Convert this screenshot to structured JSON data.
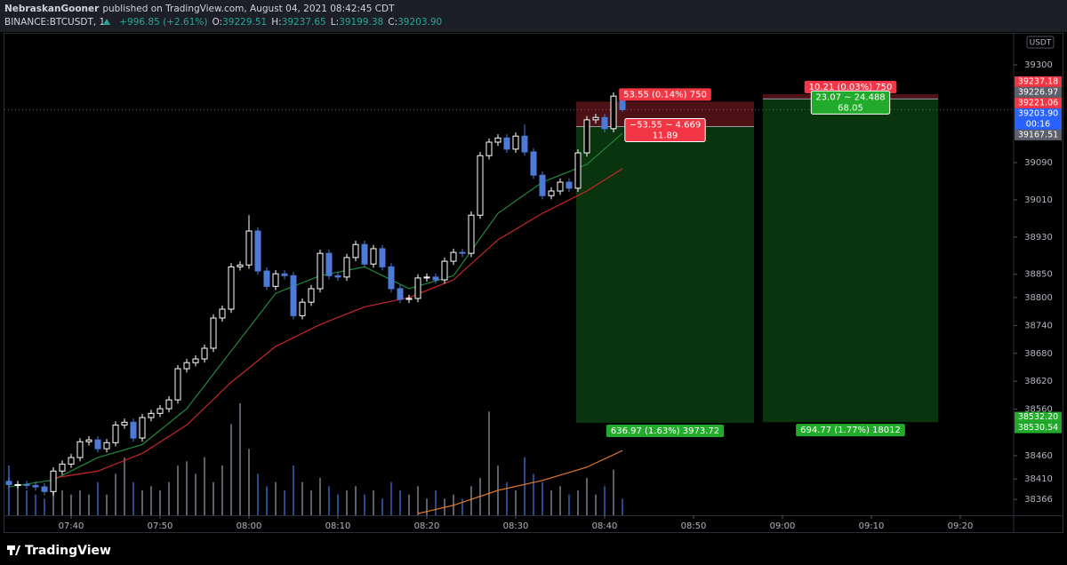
{
  "header": {
    "author": "NebraskanGooner",
    "published": "published on TradingView.com, August 04, 2021 08:42:45 CDT",
    "symbol": "BINANCE:BTCUSDT, 1",
    "change": "+996.85 (+2.61%)",
    "o_label": "O:",
    "o": "39229.51",
    "h_label": "H:",
    "h": "39237.65",
    "l_label": "L:",
    "l": "39199.38",
    "c_label": "C:",
    "c": "39203.90"
  },
  "footer": {
    "brand": "TradingView"
  },
  "chart_data": {
    "type": "candlestick",
    "currency": "USDT",
    "countdown": "00:16",
    "last_price_color": "#2962ff",
    "open": [
      38405,
      38398,
      38398,
      38396,
      38393,
      38383,
      38427,
      38442,
      38456,
      38490,
      38494,
      38475,
      38488,
      38526,
      38532,
      38498,
      38542,
      38551,
      38561,
      38580,
      38647,
      38660,
      38668,
      38691,
      38756,
      38775,
      38866,
      38870,
      38943,
      38857,
      38824,
      38851,
      38847,
      38761,
      38790,
      38819,
      38895,
      38847,
      38844,
      38886,
      38914,
      38872,
      38905,
      38866,
      38819,
      38796,
      38798,
      38842,
      38844,
      38838,
      38878,
      38897,
      38895,
      38977,
      39105,
      39134,
      39143,
      39119,
      39147,
      39113,
      39063,
      39019,
      39029,
      39048,
      39035,
      39111,
      39182,
      39187,
      39163,
      39229.51
    ],
    "high": [
      38413,
      38406,
      38406,
      38404,
      38401,
      38435,
      38450,
      38464,
      38498,
      38502,
      38502,
      38496,
      38534,
      38540,
      38540,
      38550,
      38559,
      38569,
      38588,
      38655,
      38668,
      38676,
      38699,
      38764,
      38783,
      38874,
      38878,
      38977,
      38951,
      38865,
      38859,
      38859,
      38855,
      38798,
      38827,
      38903,
      38903,
      38855,
      38894,
      38922,
      38922,
      38913,
      38913,
      38874,
      38827,
      38806,
      38850,
      38852,
      38852,
      38886,
      38905,
      38905,
      38985,
      39113,
      39142,
      39151,
      39151,
      39155,
      39172,
      39121,
      39071,
      39037,
      39056,
      39056,
      39119,
      39190,
      39195,
      39195,
      39241,
      39237.65
    ],
    "low": [
      38390,
      38390,
      38388,
      38385,
      38375,
      38375,
      38419,
      38434,
      38448,
      38482,
      38467,
      38467,
      38480,
      38518,
      38490,
      38490,
      38534,
      38543,
      38553,
      38572,
      38639,
      38652,
      38660,
      38683,
      38748,
      38767,
      38858,
      38862,
      38849,
      38816,
      38816,
      38839,
      38753,
      38753,
      38782,
      38811,
      38839,
      38836,
      38836,
      38878,
      38864,
      38864,
      38858,
      38811,
      38788,
      38788,
      38790,
      38834,
      38830,
      38830,
      38870,
      38887,
      38887,
      38969,
      39097,
      39126,
      39111,
      39111,
      39105,
      39055,
      39011,
      39011,
      39021,
      39027,
      39027,
      39103,
      39174,
      39155,
      39155,
      39199.38
    ],
    "close": [
      38398,
      38398,
      38396,
      38393,
      38383,
      38427,
      38442,
      38456,
      38490,
      38494,
      38475,
      38488,
      38526,
      38532,
      38498,
      38542,
      38551,
      38561,
      38580,
      38647,
      38660,
      38668,
      38691,
      38756,
      38775,
      38866,
      38870,
      38943,
      38857,
      38824,
      38851,
      38847,
      38761,
      38790,
      38819,
      38895,
      38847,
      38844,
      38886,
      38914,
      38872,
      38905,
      38866,
      38819,
      38796,
      38798,
      38842,
      38844,
      38838,
      38878,
      38897,
      38895,
      38977,
      39105,
      39134,
      39143,
      39119,
      39147,
      39113,
      39063,
      39019,
      39029,
      39048,
      39035,
      39111,
      39182,
      39187,
      39163,
      39233,
      39203.9
    ],
    "up_color": "#ffffff",
    "down_color": "#4a7bd6",
    "volume": {
      "ylim": [
        0,
        150
      ],
      "up_color": "#5d606b",
      "down_color": "#2a4a8f",
      "values": [
        60,
        35,
        30,
        25,
        20,
        35,
        30,
        25,
        30,
        25,
        40,
        25,
        50,
        70,
        40,
        30,
        35,
        30,
        40,
        60,
        65,
        50,
        70,
        40,
        60,
        110,
        135,
        80,
        50,
        35,
        40,
        30,
        60,
        40,
        30,
        45,
        35,
        25,
        30,
        35,
        25,
        30,
        20,
        40,
        30,
        25,
        35,
        20,
        30,
        20,
        25,
        20,
        35,
        45,
        125,
        60,
        40,
        30,
        70,
        50,
        40,
        30,
        35,
        25,
        30,
        45,
        25,
        35,
        55,
        20
      ]
    },
    "volume_ma": {
      "color": "#e0782a",
      "x": [
        46,
        50,
        55,
        60,
        65,
        69
      ],
      "values": [
        2,
        12,
        30,
        42,
        58,
        78
      ]
    },
    "moving_averages": [
      {
        "color": "#1f8a3a",
        "x": [
          0,
          5,
          10,
          15,
          20,
          25,
          30,
          35,
          40,
          45,
          50,
          55,
          60,
          65,
          69
        ],
        "values": [
          38393,
          38408,
          38456,
          38484,
          38561,
          38685,
          38809,
          38847,
          38866,
          38819,
          38847,
          38981,
          39048,
          39086,
          39153
        ]
      },
      {
        "color": "#c62828",
        "x": [
          5,
          10,
          15,
          20,
          25,
          30,
          35,
          40,
          45,
          50,
          55,
          60,
          65,
          69
        ],
        "values": [
          38412,
          38427,
          38465,
          38526,
          38618,
          38695,
          38742,
          38780,
          38800,
          38838,
          38924,
          38981,
          39029,
          39077
        ]
      }
    ],
    "stop_color": "#f23645",
    "entry_color": "#5d606b",
    "target_color": "#22ab2b",
    "positions": [
      {
        "x_start": 63.8,
        "x_end": 83.8,
        "entry": 39167.51,
        "stop": 39221.06,
        "target": 38530.54,
        "stop_label": "53.55 (0.14%) 750",
        "mid_label": [
          "−53.55 ~ 4.669",
          "11.89"
        ],
        "mid_color": "#f23645",
        "target_label": "636.97 (1.63%) 3973.72"
      },
      {
        "x_start": 84.8,
        "x_end": 104.5,
        "entry": 39226.97,
        "stop": 39237.18,
        "target": {
          "value": 38532.2,
          "label": "38532.20"
        },
        "stop_label": "10.21 (0.03%) 750",
        "mid_label": [
          "23.07 ~ 24.488",
          "68.05"
        ],
        "mid_color": "#22ab2b",
        "target_label": "694.77 (1.77%) 18012"
      }
    ],
    "xlim": [
      -0.5,
      113
    ],
    "xticks": [
      {
        "value": 7,
        "label": "07:40"
      },
      {
        "value": 17,
        "label": "07:50"
      },
      {
        "value": 27,
        "label": "08:00"
      },
      {
        "value": 37,
        "label": "08:10"
      },
      {
        "value": 47,
        "label": "08:20"
      },
      {
        "value": 57,
        "label": "08:30"
      },
      {
        "value": 67,
        "label": "08:40"
      },
      {
        "value": 77,
        "label": "08:50"
      },
      {
        "value": 87,
        "label": "09:00"
      },
      {
        "value": 97,
        "label": "09:10"
      },
      {
        "value": 107,
        "label": "09:20"
      }
    ],
    "ylim": [
      38332,
      39367
    ],
    "yticks": [
      39300,
      39090,
      39010,
      38930,
      38850,
      38800,
      38740,
      38680,
      38620,
      38560,
      38460,
      38410,
      38366
    ]
  }
}
